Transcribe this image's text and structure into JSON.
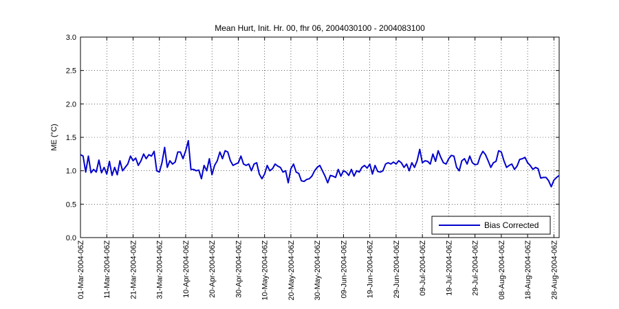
{
  "chart_data": {
    "type": "line",
    "title": "Mean Hurt, Init. Hr. 00, fhr 06, 2004030100 - 2004083100",
    "xlabel": "",
    "ylabel": "ME (°C)",
    "ylim": [
      0,
      3
    ],
    "xlim": [
      0,
      182
    ],
    "yticks": [
      0,
      0.5,
      1,
      1.5,
      2,
      2.5,
      3
    ],
    "ytick_labels": [
      "0.0",
      "0.5",
      "1.0",
      "1.5",
      "2.0",
      "2.5",
      "3.0"
    ],
    "xticks": [
      0,
      10,
      20,
      30,
      40,
      50,
      60,
      70,
      80,
      90,
      100,
      110,
      120,
      130,
      140,
      150,
      160,
      170,
      180
    ],
    "xtick_labels": [
      "01-Mar-2004-06Z",
      "11-Mar-2004-06Z",
      "21-Mar-2004-06Z",
      "31-Mar-2004-06Z",
      "10-Apr-2004-06Z",
      "20-Apr-2004-06Z",
      "30-Apr-2004-06Z",
      "10-May-2004-06Z",
      "20-May-2004-06Z",
      "30-May-2004-06Z",
      "09-Jun-2004-06Z",
      "19-Jun-2004-06Z",
      "29-Jun-2004-06Z",
      "09-Jul-2004-06Z",
      "19-Jul-2004-06Z",
      "29-Jul-2004-06Z",
      "08-Aug-2004-06Z",
      "18-Aug-2004-06Z",
      "28-Aug-2004-06Z"
    ],
    "grid": true,
    "legend_position": "bottom-right",
    "series": [
      {
        "name": "Bias Corrected",
        "color": "#0000cc",
        "x": [
          0,
          1,
          2,
          3,
          4,
          5,
          6,
          7,
          8,
          9,
          10,
          11,
          12,
          13,
          14,
          15,
          16,
          17,
          18,
          19,
          20,
          21,
          22,
          23,
          24,
          25,
          26,
          27,
          28,
          29,
          30,
          31,
          32,
          33,
          34,
          35,
          36,
          37,
          38,
          39,
          40,
          41,
          42,
          43,
          44,
          45,
          46,
          47,
          48,
          49,
          50,
          51,
          52,
          53,
          54,
          55,
          56,
          57,
          58,
          59,
          60,
          61,
          62,
          63,
          64,
          65,
          66,
          67,
          68,
          69,
          70,
          71,
          72,
          73,
          74,
          75,
          76,
          77,
          78,
          79,
          80,
          81,
          82,
          83,
          84,
          85,
          86,
          87,
          88,
          89,
          90,
          91,
          92,
          93,
          94,
          95,
          96,
          97,
          98,
          99,
          100,
          101,
          102,
          103,
          104,
          105,
          106,
          107,
          108,
          109,
          110,
          111,
          112,
          113,
          114,
          115,
          116,
          117,
          118,
          119,
          120,
          121,
          122,
          123,
          124,
          125,
          126,
          127,
          128,
          129,
          130,
          131,
          132,
          133,
          134,
          135,
          136,
          137,
          138,
          139,
          140,
          141,
          142,
          143,
          144,
          145,
          146,
          147,
          148,
          149,
          150,
          151,
          152,
          153,
          154,
          155,
          156,
          157,
          158,
          159,
          160,
          161,
          162,
          163,
          164,
          165,
          166,
          167,
          168,
          169,
          170,
          171,
          172,
          173,
          174,
          175,
          176,
          177,
          178,
          179,
          180,
          181,
          182
        ],
        "values": [
          1.24,
          1.22,
          0.98,
          1.22,
          0.97,
          1.02,
          0.98,
          1.16,
          0.97,
          1.05,
          0.95,
          1.14,
          0.93,
          1.05,
          0.94,
          1.15,
          1.0,
          1.05,
          1.1,
          1.22,
          1.15,
          1.19,
          1.08,
          1.15,
          1.25,
          1.18,
          1.24,
          1.22,
          1.29,
          1.0,
          0.98,
          1.12,
          1.35,
          1.05,
          1.15,
          1.1,
          1.13,
          1.28,
          1.28,
          1.18,
          1.3,
          1.45,
          1.02,
          1.02,
          1.0,
          1.01,
          0.88,
          1.08,
          1.0,
          1.18,
          0.94,
          1.08,
          1.15,
          1.28,
          1.18,
          1.3,
          1.28,
          1.15,
          1.08,
          1.1,
          1.12,
          1.22,
          1.1,
          1.08,
          1.1,
          1.0,
          1.1,
          1.12,
          0.95,
          0.88,
          0.95,
          1.08,
          1.0,
          1.03,
          1.1,
          1.07,
          1.05,
          0.98,
          1.0,
          0.82,
          1.03,
          1.1,
          0.98,
          0.96,
          0.85,
          0.84,
          0.87,
          0.88,
          0.92,
          1.0,
          1.05,
          1.08,
          1.0,
          0.92,
          0.82,
          0.93,
          0.92,
          0.9,
          1.02,
          0.92,
          1.0,
          0.98,
          0.93,
          1.02,
          0.92,
          1.0,
          0.98,
          1.05,
          1.08,
          1.04,
          1.1,
          0.95,
          1.08,
          0.99,
          0.98,
          1.0,
          1.1,
          1.12,
          1.1,
          1.13,
          1.1,
          1.15,
          1.12,
          1.05,
          1.1,
          1.0,
          1.12,
          1.05,
          1.15,
          1.32,
          1.12,
          1.15,
          1.14,
          1.1,
          1.25,
          1.14,
          1.3,
          1.2,
          1.12,
          1.1,
          1.18,
          1.23,
          1.22,
          1.05,
          1.0,
          1.15,
          1.18,
          1.1,
          1.22,
          1.12,
          1.09,
          1.1,
          1.22,
          1.29,
          1.24,
          1.15,
          1.05,
          1.12,
          1.14,
          1.3,
          1.28,
          1.15,
          1.05,
          1.08,
          1.1,
          1.02,
          1.07,
          1.17,
          1.18,
          1.2,
          1.12,
          1.08,
          1.02,
          1.05,
          1.03,
          0.89,
          0.9,
          0.9,
          0.85,
          0.76,
          0.86,
          0.9,
          0.93
        ]
      }
    ]
  }
}
